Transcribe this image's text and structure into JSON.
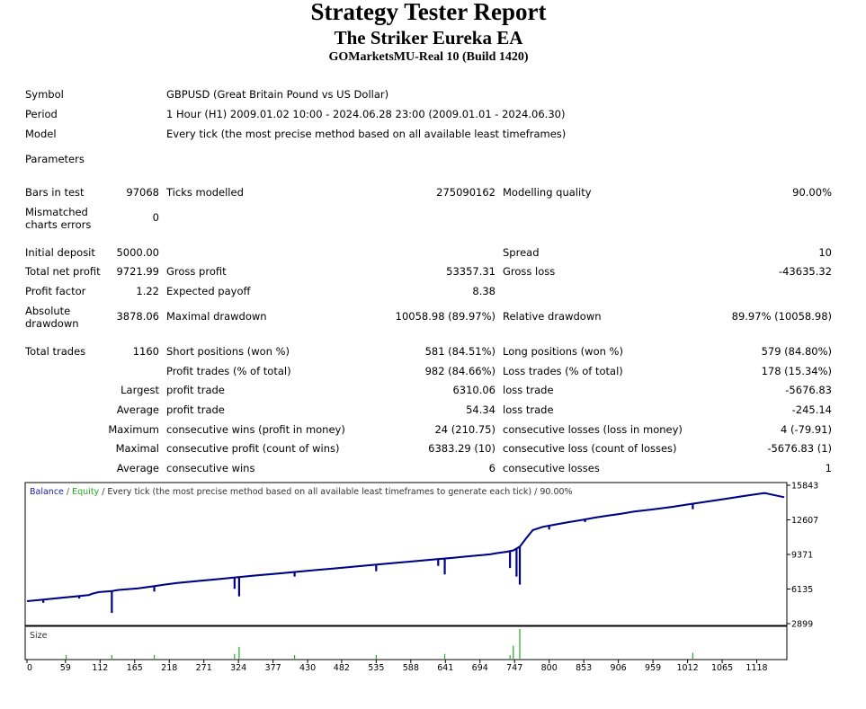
{
  "header": {
    "title": "Strategy Tester Report",
    "ea_name": "The Striker Eureka EA",
    "account": "GOMarketsMU-Real 10 (Build 1420)"
  },
  "settings": {
    "symbol_label": "Symbol",
    "symbol_value": "GBPUSD (Great Britain Pound vs US Dollar)",
    "period_label": "Period",
    "period_value": "1 Hour (H1) 2009.01.02 10:00 - 2024.06.28 23:00 (2009.01.01 - 2024.06.30)",
    "model_label": "Model",
    "model_value": "Every tick (the most precise method based on all available least timeframes)",
    "parameters_label": "Parameters"
  },
  "quality": {
    "bars_label": "Bars in test",
    "bars_value": "97068",
    "ticks_label": "Ticks modelled",
    "ticks_value": "275090162",
    "mq_label": "Modelling quality",
    "mq_value": "90.00%",
    "mismatch_label": "Mismatched charts errors",
    "mismatch_value": "0"
  },
  "results": {
    "initial_deposit_label": "Initial deposit",
    "initial_deposit_value": "5000.00",
    "spread_label": "Spread",
    "spread_value": "10",
    "net_profit_label": "Total net profit",
    "net_profit_value": "9721.99",
    "gross_profit_label": "Gross profit",
    "gross_profit_value": "53357.31",
    "gross_loss_label": "Gross loss",
    "gross_loss_value": "-43635.32",
    "profit_factor_label": "Profit factor",
    "profit_factor_value": "1.22",
    "expected_payoff_label": "Expected payoff",
    "expected_payoff_value": "8.38",
    "abs_dd_label": "Absolute drawdown",
    "abs_dd_value": "3878.06",
    "max_dd_label": "Maximal drawdown",
    "max_dd_value": "10058.98 (89.97%)",
    "rel_dd_label": "Relative drawdown",
    "rel_dd_value": "89.97% (10058.98)"
  },
  "trades": {
    "total_label": "Total trades",
    "total_value": "1160",
    "short_label": "Short positions (won %)",
    "short_value": "581 (84.51%)",
    "long_label": "Long positions (won %)",
    "long_value": "579 (84.80%)",
    "profit_trades_label": "Profit trades (% of total)",
    "profit_trades_value": "982 (84.66%)",
    "loss_trades_label": "Loss trades (% of total)",
    "loss_trades_value": "178 (15.34%)",
    "largest_label": "Largest",
    "largest_profit_label": "profit trade",
    "largest_profit_value": "6310.06",
    "largest_loss_label": "loss trade",
    "largest_loss_value": "-5676.83",
    "average_label": "Average",
    "avg_profit_label": "profit trade",
    "avg_profit_value": "54.34",
    "avg_loss_label": "loss trade",
    "avg_loss_value": "-245.14",
    "maximum_label": "Maximum",
    "max_cons_wins_label": "consecutive wins (profit in money)",
    "max_cons_wins_value": "24 (210.75)",
    "max_cons_losses_label": "consecutive losses (loss in money)",
    "max_cons_losses_value": "4 (-79.91)",
    "maximal_label": "Maximal",
    "maximal_profit_label": "consecutive profit (count of wins)",
    "maximal_profit_value": "6383.29 (10)",
    "maximal_loss_label": "consecutive loss (count of losses)",
    "maximal_loss_value": "-5676.83 (1)",
    "average2_label": "Average",
    "avg_cons_wins_label": "consecutive wins",
    "avg_cons_wins_value": "6",
    "avg_cons_losses_label": "consecutive losses",
    "avg_cons_losses_value": "1"
  },
  "chart_legend": {
    "balance": "Balance",
    "sep1": " / ",
    "equity": "Equity",
    "rest": " / Every tick (the most precise method based on all available least timeframes to generate each tick) / 90.00%"
  },
  "size_label": "Size",
  "colors": {
    "balance": "#00008B",
    "equity": "#22AA22",
    "size_bars": "#22AA22",
    "legend_balance": "#1c1caa",
    "legend_equity": "#22aa22",
    "frame": "#000000"
  },
  "chart_data": [
    {
      "type": "line",
      "title": "",
      "xlabel": "",
      "ylabel": "",
      "xlim": [
        0,
        1160
      ],
      "ylim": [
        2899,
        15843
      ],
      "y_ticks": [
        15843,
        12607,
        9371,
        6135,
        2899
      ],
      "x_ticks": [
        0,
        59,
        112,
        165,
        218,
        271,
        324,
        377,
        430,
        482,
        535,
        588,
        641,
        694,
        747,
        800,
        853,
        906,
        959,
        1012,
        1065,
        1118
      ],
      "grid": false,
      "series": [
        {
          "name": "Balance",
          "x": [
            0,
            25,
            50,
            75,
            95,
            100,
            110,
            130,
            140,
            170,
            195,
            210,
            230,
            260,
            290,
            320,
            350,
            380,
            410,
            440,
            470,
            500,
            530,
            560,
            590,
            620,
            650,
            670,
            690,
            700,
            710,
            720,
            735,
            745,
            755,
            765,
            775,
            790,
            810,
            830,
            850,
            870,
            890,
            910,
            930,
            960,
            990,
            1010,
            1040,
            1070,
            1100,
            1130,
            1160
          ],
          "y": [
            5000,
            5150,
            5300,
            5450,
            5580,
            5700,
            5850,
            5950,
            6050,
            6200,
            6400,
            6550,
            6700,
            6880,
            7050,
            7230,
            7400,
            7560,
            7730,
            7900,
            8060,
            8230,
            8400,
            8560,
            8720,
            8880,
            9040,
            9160,
            9280,
            9330,
            9400,
            9500,
            9620,
            9750,
            10100,
            10900,
            11650,
            11950,
            12180,
            12400,
            12600,
            12820,
            13000,
            13180,
            13380,
            13600,
            13830,
            14030,
            14300,
            14570,
            14850,
            15120,
            14722
          ]
        },
        {
          "name": "Equity",
          "x": [
            0,
            25,
            50,
            75,
            95,
            100,
            110,
            130,
            140,
            170,
            195,
            210,
            230,
            260,
            290,
            320,
            350,
            380,
            410,
            440,
            470,
            500,
            530,
            560,
            590,
            620,
            650,
            670,
            690,
            700,
            710,
            720,
            735,
            745,
            755,
            765,
            775,
            790,
            810,
            830,
            850,
            870,
            890,
            910,
            930,
            960,
            990,
            1010,
            1040,
            1070,
            1100,
            1130,
            1160
          ],
          "y": [
            5000,
            5130,
            5280,
            5430,
            5560,
            5680,
            5830,
            5930,
            6030,
            6180,
            6380,
            6530,
            6680,
            6860,
            7030,
            7210,
            7380,
            7540,
            7710,
            7880,
            8040,
            8210,
            8380,
            8540,
            8700,
            8860,
            9020,
            9140,
            9260,
            9310,
            9380,
            9480,
            9600,
            9730,
            10080,
            10880,
            11630,
            11930,
            12160,
            12380,
            12580,
            12800,
            12980,
            13160,
            13360,
            13580,
            13810,
            14010,
            14280,
            14550,
            14830,
            15100,
            14722
          ]
        }
      ],
      "drawdown_spikes": [
        {
          "x": 25,
          "y": 4850
        },
        {
          "x": 80,
          "y": 5250
        },
        {
          "x": 130,
          "y": 3900
        },
        {
          "x": 195,
          "y": 5900
        },
        {
          "x": 318,
          "y": 6150
        },
        {
          "x": 325,
          "y": 5450
        },
        {
          "x": 410,
          "y": 7300
        },
        {
          "x": 535,
          "y": 7800
        },
        {
          "x": 630,
          "y": 8300
        },
        {
          "x": 640,
          "y": 7500
        },
        {
          "x": 740,
          "y": 8100
        },
        {
          "x": 750,
          "y": 7300
        },
        {
          "x": 755,
          "y": 6550
        },
        {
          "x": 800,
          "y": 11700
        },
        {
          "x": 855,
          "y": 12400
        },
        {
          "x": 1020,
          "y": 13600
        }
      ]
    },
    {
      "type": "bar",
      "title": "Size",
      "x": [
        60,
        130,
        195,
        318,
        325,
        410,
        535,
        640,
        740,
        745,
        755,
        1020
      ],
      "values": [
        0.3,
        0.3,
        0.3,
        0.4,
        1.0,
        0.3,
        0.3,
        0.4,
        0.3,
        1.1,
        2.5,
        0.5
      ]
    }
  ]
}
